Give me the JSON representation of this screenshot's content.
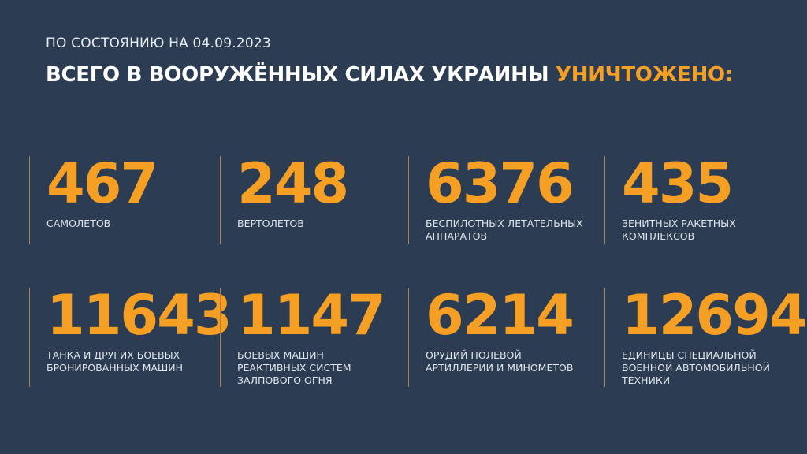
{
  "header": {
    "date_line": "ПО СОСТОЯНИЮ НА 04.09.2023",
    "title_main": "ВСЕГО В ВООРУЖЁННЫХ СИЛАХ УКРАИНЫ",
    "title_accent": "УНИЧТОЖЕНО:"
  },
  "colors": {
    "background": "#2c3d53",
    "accent": "#f5a024",
    "text": "#dfe5ec"
  },
  "stats": [
    {
      "value": "467",
      "label": "САМОЛЕТОВ"
    },
    {
      "value": "248",
      "label": "ВЕРТОЛЕТОВ"
    },
    {
      "value": "6376",
      "label": "БЕСПИЛОТНЫХ ЛЕТАТЕЛЬНЫХ АППАРАТОВ"
    },
    {
      "value": "435",
      "label": "ЗЕНИТНЫХ РАКЕТНЫХ КОМПЛЕКСОВ"
    },
    {
      "value": "11643",
      "label": "ТАНКА И ДРУГИХ БОЕВЫХ БРОНИРОВАННЫХ МАШИН"
    },
    {
      "value": "1147",
      "label": "БОЕВЫХ МАШИН РЕАКТИВНЫХ СИСТЕМ ЗАЛПОВОГО ОГНЯ"
    },
    {
      "value": "6214",
      "label": "ОРУДИЙ ПОЛЕВОЙ АРТИЛЛЕРИИ И МИНОМЕТОВ"
    },
    {
      "value": "12694",
      "label": "ЕДИНИЦЫ СПЕЦИАЛЬНОЙ ВОЕННОЙ АВТОМОБИЛЬНОЙ ТЕХНИКИ"
    }
  ]
}
